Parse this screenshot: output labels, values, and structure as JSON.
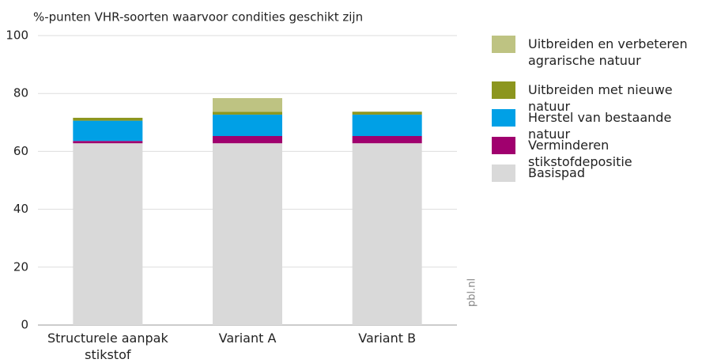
{
  "chart_data": {
    "type": "stacked_bar",
    "title": "%-punten VHR-soorten waarvoor condities geschikt zijn",
    "source": "pbl.nl",
    "categories": [
      "Structurele aanpak stikstof",
      "Variant A",
      "Variant B"
    ],
    "series": [
      {
        "name": "Basispad",
        "color": "#d9d9d9",
        "values": [
          62.8,
          62.8,
          62.8
        ]
      },
      {
        "name": "Verminderen stikstofdepositie",
        "color": "#a0006e",
        "values": [
          0.8,
          2.5,
          2.5
        ]
      },
      {
        "name": "Herstel van bestaande natuur",
        "color": "#00a0e6",
        "values": [
          7,
          7.4,
          7.4
        ]
      },
      {
        "name": "Uitbreiden met nieuwe natuur",
        "color": "#8c961e",
        "values": [
          1,
          1,
          1
        ]
      },
      {
        "name": "Uitbreiden en verbeteren agrarische natuur",
        "color": "#bec382",
        "values": [
          0,
          4.7,
          0
        ]
      }
    ],
    "ylim": [
      0,
      100
    ],
    "yticks": [
      0,
      20,
      40,
      60,
      80,
      100
    ],
    "grid": true
  }
}
